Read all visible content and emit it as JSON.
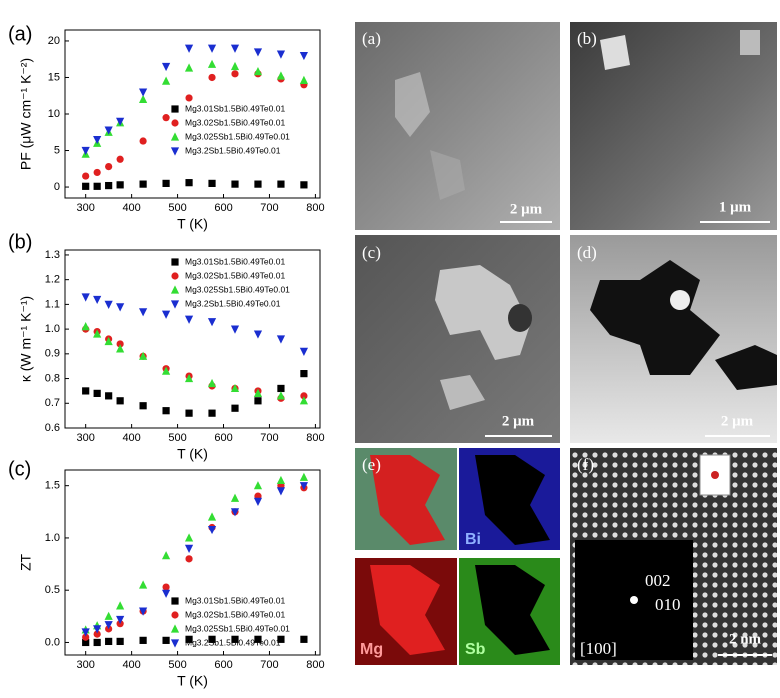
{
  "chart_data": [
    {
      "type": "scatter",
      "panel": "(a)",
      "xlabel": "T (K)",
      "ylabel": "PF (μW cm⁻¹ K⁻²)",
      "x": [
        300,
        325,
        350,
        375,
        425,
        475,
        525,
        575,
        625,
        675,
        725,
        775
      ],
      "xlim": [
        255,
        810
      ],
      "xticks": [
        300,
        400,
        500,
        600,
        700,
        800
      ],
      "ylim": [
        -1.5,
        21.5
      ],
      "yticks": [
        0,
        5,
        10,
        15,
        20
      ],
      "legend": "center right",
      "series": [
        {
          "name": "Mg3.01Sb1.5Bi0.49Te0.01",
          "color": "#000000",
          "marker": "square",
          "values": [
            0.1,
            0.1,
            0.2,
            0.3,
            0.4,
            0.5,
            0.6,
            0.5,
            0.4,
            0.4,
            0.4,
            0.3
          ]
        },
        {
          "name": "Mg3.02Sb1.5Bi0.49Te0.01",
          "color": "#e02020",
          "marker": "circle",
          "values": [
            1.5,
            2,
            2.8,
            3.8,
            6.3,
            9.5,
            12.2,
            15,
            15.5,
            15.5,
            14.8,
            14
          ]
        },
        {
          "name": "Mg3.025Sb1.5Bi0.49Te0.01",
          "color": "#33dd33",
          "marker": "triangle-up",
          "values": [
            4.5,
            6,
            7.5,
            8.8,
            12,
            14.5,
            16.3,
            16.8,
            16.5,
            15.8,
            15.2,
            14.6
          ]
        },
        {
          "name": "Mg3.2Sb1.5Bi0.49Te0.01",
          "color": "#1a2ed0",
          "marker": "triangle-down",
          "values": [
            5,
            6.5,
            7.8,
            9,
            13,
            16.5,
            19,
            19,
            19,
            18.5,
            18.2,
            18
          ]
        }
      ]
    },
    {
      "type": "scatter",
      "panel": "(b)",
      "xlabel": "T (K)",
      "ylabel": "κ (W m⁻¹ K⁻¹)",
      "x": [
        300,
        325,
        350,
        375,
        425,
        475,
        525,
        575,
        625,
        675,
        725,
        775
      ],
      "xlim": [
        255,
        810
      ],
      "xticks": [
        300,
        400,
        500,
        600,
        700,
        800
      ],
      "ylim": [
        0.6,
        1.32
      ],
      "yticks": [
        0.6,
        0.7,
        0.8,
        0.9,
        {
          "value": 1,
          "label": "1.0"
        },
        1.1,
        1.2,
        1.3
      ],
      "legend": "upper right",
      "series": [
        {
          "name": "Mg3.01Sb1.5Bi0.49Te0.01",
          "color": "#000000",
          "marker": "square",
          "values": [
            0.75,
            0.74,
            0.73,
            0.71,
            0.69,
            0.67,
            0.66,
            0.66,
            0.68,
            0.71,
            0.76,
            0.82
          ]
        },
        {
          "name": "Mg3.02Sb1.5Bi0.49Te0.01",
          "color": "#e02020",
          "marker": "circle",
          "values": [
            1.0,
            0.99,
            0.96,
            0.94,
            0.89,
            0.84,
            0.81,
            0.77,
            0.76,
            0.75,
            0.72,
            0.73
          ]
        },
        {
          "name": "Mg3.025Sb1.5Bi0.49Te0.01",
          "color": "#33dd33",
          "marker": "triangle-up",
          "values": [
            1.01,
            0.98,
            0.95,
            0.92,
            0.89,
            0.83,
            0.8,
            0.78,
            0.76,
            0.74,
            0.73,
            0.71
          ]
        },
        {
          "name": "Mg3.2Sb1.5Bi0.49Te0.01",
          "color": "#1a2ed0",
          "marker": "triangle-down",
          "values": [
            1.13,
            1.12,
            1.1,
            1.09,
            1.07,
            1.06,
            1.04,
            1.03,
            1.0,
            0.98,
            0.96,
            0.91
          ]
        }
      ]
    },
    {
      "type": "scatter",
      "panel": "(c)",
      "xlabel": "T (K)",
      "ylabel": "ZT",
      "x": [
        300,
        325,
        350,
        375,
        425,
        475,
        525,
        575,
        625,
        675,
        725,
        775
      ],
      "xlim": [
        255,
        810
      ],
      "xticks": [
        300,
        400,
        500,
        600,
        700,
        800
      ],
      "ylim": [
        -0.12,
        1.65
      ],
      "yticks": [
        {
          "value": 0,
          "label": "0.0"
        },
        0.5,
        {
          "value": 1,
          "label": "1.0"
        },
        1.5
      ],
      "legend": "lower right",
      "series": [
        {
          "name": "Mg3.01Sb1.5Bi0.49Te0.01",
          "color": "#000000",
          "marker": "square",
          "values": [
            0.0,
            0.0,
            0.01,
            0.01,
            0.02,
            0.02,
            0.03,
            0.03,
            0.03,
            0.03,
            0.03,
            0.03
          ]
        },
        {
          "name": "Mg3.02Sb1.5Bi0.49Te0.01",
          "color": "#e02020",
          "marker": "circle",
          "values": [
            0.05,
            0.08,
            0.13,
            0.18,
            0.3,
            0.53,
            0.8,
            1.1,
            1.25,
            1.4,
            1.5,
            1.48
          ]
        },
        {
          "name": "Mg3.025Sb1.5Bi0.49Te0.01",
          "color": "#33dd33",
          "marker": "triangle-up",
          "values": [
            0.12,
            0.16,
            0.25,
            0.35,
            0.55,
            0.83,
            1.0,
            1.2,
            1.38,
            1.5,
            1.55,
            1.58
          ]
        },
        {
          "name": "Mg3.2Sb1.5Bi0.49Te0.01",
          "color": "#1a2ed0",
          "marker": "triangle-down",
          "values": [
            0.1,
            0.13,
            0.17,
            0.22,
            0.3,
            0.47,
            0.9,
            1.08,
            1.25,
            1.35,
            1.45,
            1.5
          ]
        }
      ]
    }
  ],
  "images": [
    {
      "label": "(a)",
      "scale": "2 μm"
    },
    {
      "label": "(b)",
      "scale": "1 μm"
    },
    {
      "label": "(c)",
      "scale": "2 μm"
    },
    {
      "label": "(d)",
      "scale": "2 μm"
    },
    {
      "label": "(e)",
      "elements": [
        "Bi",
        "Mg",
        "Sb"
      ]
    },
    {
      "label": "(f)",
      "spots": [
        "002",
        "010"
      ],
      "zone": "[100]",
      "scale": "2 nm"
    }
  ]
}
